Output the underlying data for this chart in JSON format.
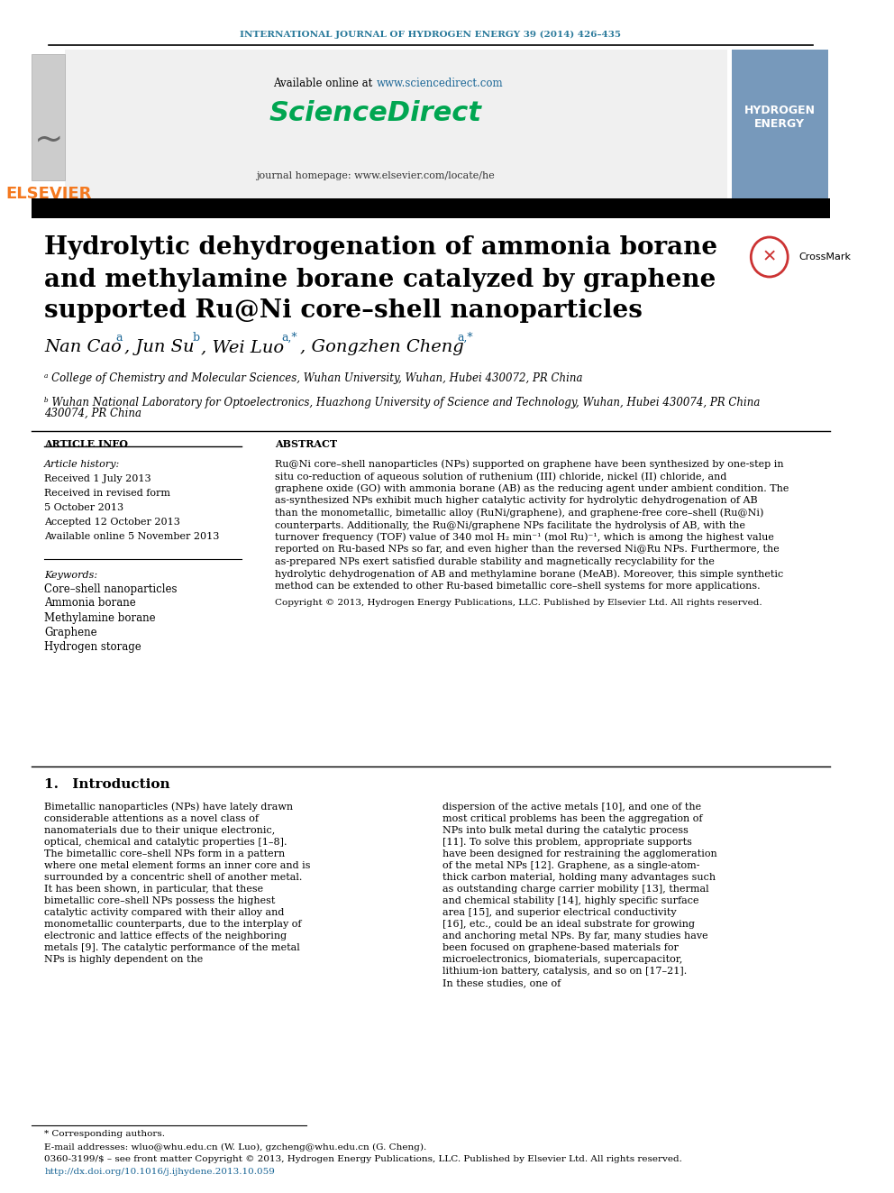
{
  "journal_header": "INTERNATIONAL JOURNAL OF HYDROGEN ENERGY 39 (2014) 426–435",
  "journal_header_color": "#2a7a9b",
  "available_online_text": "Available online at ",
  "sciencedirect_url": "www.sciencedirect.com",
  "sciencedirect_url_color": "#00a651",
  "sciencedirect_logo_text": "ScienceDirect",
  "sciencedirect_logo_color": "#00a651",
  "journal_homepage_text": "journal homepage: www.elsevier.com/locate/he",
  "elsevier_text": "ELSEVIER",
  "elsevier_color": "#f47920",
  "title_line1": "Hydrolytic dehydrogenation of ammonia borane",
  "title_line2": "and methylamine borane catalyzed by graphene",
  "title_line3": "supported Ru@Ni core–shell nanoparticles",
  "authors": "Nan Cao ᵃ, Jun Su ᵇ, Wei Luo ᵃ,*, Gongzhen Cheng ᵃ,*",
  "affiliation_a": "ᵃ College of Chemistry and Molecular Sciences, Wuhan University, Wuhan, Hubei 430072, PR China",
  "affiliation_b": "ᵇ Wuhan National Laboratory for Optoelectronics, Huazhong University of Science and Technology, Wuhan, Hubei 430074, PR China",
  "article_info_header": "ARTICLE INFO",
  "abstract_header": "ABSTRACT",
  "article_history_label": "Article history:",
  "received1": "Received 1 July 2013",
  "received2": "Received in revised form",
  "received2b": "5 October 2013",
  "accepted": "Accepted 12 October 2013",
  "available_online": "Available online 5 November 2013",
  "keywords_label": "Keywords:",
  "keyword1": "Core–shell nanoparticles",
  "keyword2": "Ammonia borane",
  "keyword3": "Methylamine borane",
  "keyword4": "Graphene",
  "keyword5": "Hydrogen storage",
  "abstract_text": "Ru@Ni core–shell nanoparticles (NPs) supported on graphene have been synthesized by one-step in situ co-reduction of aqueous solution of ruthenium (III) chloride, nickel (II) chloride, and graphene oxide (GO) with ammonia borane (AB) as the reducing agent under ambient condition. The as-synthesized NPs exhibit much higher catalytic activity for hydrolytic dehydrogenation of AB than the monometallic, bimetallic alloy (RuNi/graphene), and graphene-free core–shell (Ru@Ni) counterparts. Additionally, the Ru@Ni/graphene NPs facilitate the hydrolysis of AB, with the turnover frequency (TOF) value of 340 mol H₂ min⁻¹ (mol Ru)⁻¹, which is among the highest value reported on Ru-based NPs so far, and even higher than the reversed Ni@Ru NPs. Furthermore, the as-prepared NPs exert satisfied durable stability and magnetically recyclability for the hydrolytic dehydrogenation of AB and methylamine borane (MeAB). Moreover, this simple synthetic method can be extended to other Ru-based bimetallic core–shell systems for more applications.",
  "copyright_text": "Copyright © 2013, Hydrogen Energy Publications, LLC. Published by Elsevier Ltd. All rights reserved.",
  "intro_heading": "1. Introduction",
  "intro_col1": "Bimetallic nanoparticles (NPs) have lately drawn considerable attentions as a novel class of nanomaterials due to their unique electronic, optical, chemical and catalytic properties [1–8]. The bimetallic core–shell NPs form in a pattern where one metal element forms an inner core and is surrounded by a concentric shell of another metal. It has been shown, in particular, that these bimetallic core–shell NPs possess the highest catalytic activity compared with their alloy and monometallic counterparts, due to the interplay of electronic and lattice effects of the neighboring metals [9]. The catalytic performance of the metal NPs is highly dependent on the",
  "intro_col2": "dispersion of the active metals [10], and one of the most critical problems has been the aggregation of NPs into bulk metal during the catalytic process [11]. To solve this problem, appropriate supports have been designed for restraining the agglomeration of the metal NPs [12]. Graphene, as a single-atom-thick carbon material, holding many advantages such as outstanding charge carrier mobility [13], thermal and chemical stability [14], highly specific surface area [15], and superior electrical conductivity [16], etc., could be an ideal substrate for growing and anchoring metal NPs. By far, many studies have been focused on graphene-based materials for microelectronics, biomaterials, supercapacitor, lithium-ion battery, catalysis, and so on [17–21]. In these studies, one of",
  "footnote_star": "* Corresponding authors.",
  "footnote_email": "E-mail addresses: wluo@whu.edu.cn (W. Luo), gzcheng@whu.edu.cn (G. Cheng).",
  "footnote_issn": "0360-3199/$ – see front matter Copyright © 2013, Hydrogen Energy Publications, LLC. Published by Elsevier Ltd. All rights reserved.",
  "footnote_doi": "http://dx.doi.org/10.1016/j.ijhydene.2013.10.059",
  "doi_color": "#1a6696",
  "url_color": "#1a6696"
}
